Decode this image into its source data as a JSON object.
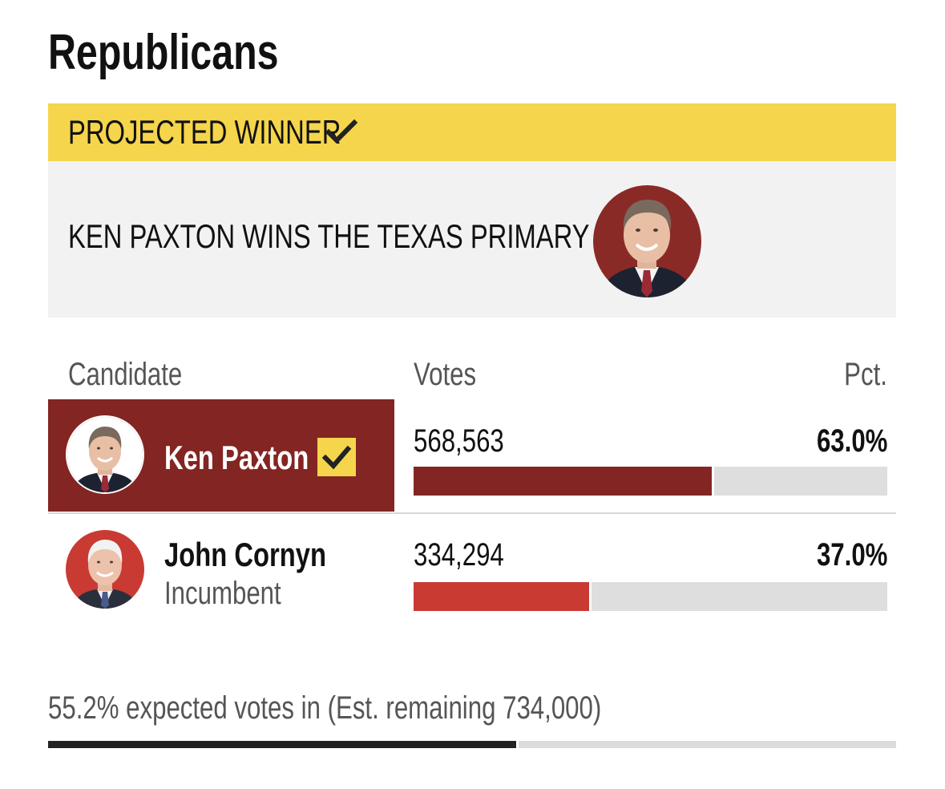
{
  "section": {
    "title": "Republicans"
  },
  "banner": {
    "label": "PROJECTED WINNER",
    "icon": "check-icon",
    "color": "#f5d54b",
    "headline": "KEN PAXTON WINS THE TEXAS PRIMARY"
  },
  "table": {
    "headers": {
      "candidate": "Candidate",
      "votes": "Votes",
      "pct": "Pct."
    },
    "rows": [
      {
        "name": "Ken Paxton",
        "subtitle": "",
        "votes": "568,563",
        "pct": "63.0%",
        "share": 0.63,
        "winner": true,
        "color": "#832522"
      },
      {
        "name": "John Cornyn",
        "subtitle": "Incumbent",
        "votes": "334,294",
        "pct": "37.0%",
        "share": 0.37,
        "winner": false,
        "color": "#c93a33"
      }
    ]
  },
  "footer": {
    "expected_text": "55.2% expected votes in (Est. remaining 734,000)",
    "expected_share": 0.552
  }
}
